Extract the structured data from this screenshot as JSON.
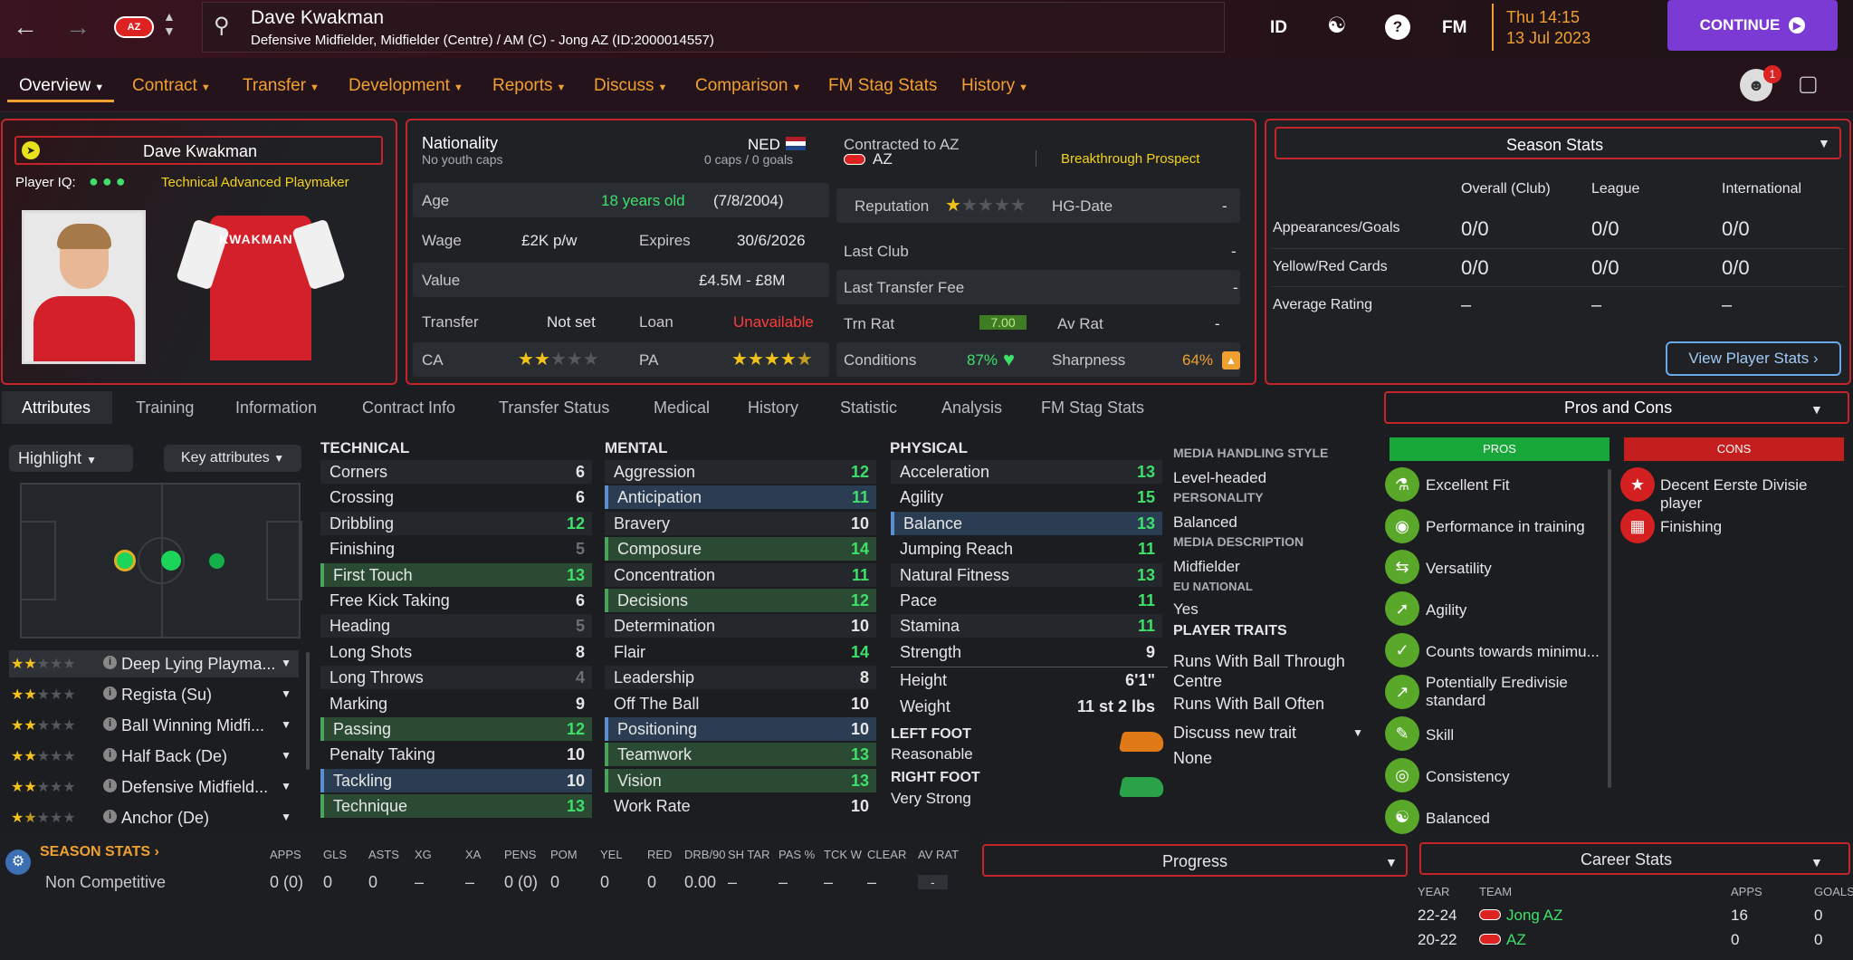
{
  "header": {
    "name": "Dave Kwakman",
    "subtitle": "Defensive Midfielder, Midfielder (Centre) / AM (C) - Jong AZ (ID:2000014557)",
    "id_label": "ID",
    "fm_label": "FM",
    "day_time": "Thu 14:15",
    "date": "13 Jul 2023",
    "continue_label": "CONTINUE",
    "notif_count": "1"
  },
  "nav": {
    "tabs": [
      "Overview",
      "Contract",
      "Transfer",
      "Development",
      "Reports",
      "Discuss",
      "Comparison",
      "FM Stag Stats",
      "History"
    ]
  },
  "profile": {
    "name": "Dave Kwakman",
    "iq_label": "Player IQ:",
    "role": "Technical Advanced Playmaker",
    "shirt_name": "KWAKMAN"
  },
  "info": {
    "nationality_label": "Nationality",
    "nationality": "NED",
    "youth_caps": "No youth caps",
    "caps": "0 caps / 0 goals",
    "age_label": "Age",
    "age": "18 years old",
    "dob": "(7/8/2004)",
    "wage_label": "Wage",
    "wage": "£2K p/w",
    "expires_label": "Expires",
    "expires": "30/6/2026",
    "value_label": "Value",
    "value": "£4.5M - £8M",
    "transfer_label": "Transfer",
    "transfer": "Not set",
    "loan_label": "Loan",
    "loan": "Unavailable",
    "ca_label": "CA",
    "pa_label": "PA",
    "ca_stars": 2,
    "pa_stars": 4.5
  },
  "contract": {
    "contracted_label": "Contracted to AZ",
    "club": "AZ",
    "tag": "Breakthrough Prospect",
    "reputation_label": "Reputation",
    "reputation_stars": 1,
    "hg_label": "HG-Date",
    "hg": "-",
    "last_club_label": "Last Club",
    "last_club": "-",
    "last_fee_label": "Last Transfer Fee",
    "last_fee": "-",
    "trn_label": "Trn Rat",
    "trn": "7.00",
    "av_label": "Av Rat",
    "av": "-",
    "cond_label": "Conditions",
    "cond": "87%",
    "sharp_label": "Sharpness",
    "sharp": "64%"
  },
  "season": {
    "title": "Season Stats",
    "cols": [
      "Overall (Club)",
      "League",
      "International"
    ],
    "rows": [
      {
        "label": "Appearances/Goals",
        "vals": [
          "0/0",
          "0/0",
          "0/0"
        ]
      },
      {
        "label": "Yellow/Red Cards",
        "vals": [
          "0/0",
          "0/0",
          "0/0"
        ]
      },
      {
        "label": "Average Rating",
        "vals": [
          "–",
          "–",
          "–"
        ]
      }
    ],
    "button": "View Player Stats"
  },
  "subtabs": [
    "Attributes",
    "Training",
    "Information",
    "Contract Info",
    "Transfer Status",
    "Medical",
    "History",
    "Statistic",
    "Analysis",
    "FM Stag Stats"
  ],
  "controls": {
    "highlight": "Highlight",
    "key_attributes": "Key attributes"
  },
  "roles": [
    {
      "name": "Deep Lying Playma...",
      "stars": 2
    },
    {
      "name": "Regista (Su)",
      "stars": 2
    },
    {
      "name": "Ball Winning Midfi...",
      "stars": 2
    },
    {
      "name": "Half Back (De)",
      "stars": 2
    },
    {
      "name": "Defensive Midfield...",
      "stars": 2
    },
    {
      "name": "Anchor (De)",
      "stars": 1.5
    }
  ],
  "technical": {
    "title": "TECHNICAL",
    "items": [
      {
        "n": "Corners",
        "v": "6"
      },
      {
        "n": "Crossing",
        "v": "6"
      },
      {
        "n": "Dribbling",
        "v": "12"
      },
      {
        "n": "Finishing",
        "v": "5"
      },
      {
        "n": "First Touch",
        "v": "13"
      },
      {
        "n": "Free Kick Taking",
        "v": "6"
      },
      {
        "n": "Heading",
        "v": "5"
      },
      {
        "n": "Long Shots",
        "v": "8"
      },
      {
        "n": "Long Throws",
        "v": "4"
      },
      {
        "n": "Marking",
        "v": "9"
      },
      {
        "n": "Passing",
        "v": "12"
      },
      {
        "n": "Penalty Taking",
        "v": "10"
      },
      {
        "n": "Tackling",
        "v": "10"
      },
      {
        "n": "Technique",
        "v": "13"
      }
    ]
  },
  "mental": {
    "title": "MENTAL",
    "items": [
      {
        "n": "Aggression",
        "v": "12"
      },
      {
        "n": "Anticipation",
        "v": "11"
      },
      {
        "n": "Bravery",
        "v": "10"
      },
      {
        "n": "Composure",
        "v": "14"
      },
      {
        "n": "Concentration",
        "v": "11"
      },
      {
        "n": "Decisions",
        "v": "12"
      },
      {
        "n": "Determination",
        "v": "10"
      },
      {
        "n": "Flair",
        "v": "14"
      },
      {
        "n": "Leadership",
        "v": "8"
      },
      {
        "n": "Off The Ball",
        "v": "10"
      },
      {
        "n": "Positioning",
        "v": "10"
      },
      {
        "n": "Teamwork",
        "v": "13"
      },
      {
        "n": "Vision",
        "v": "13"
      },
      {
        "n": "Work Rate",
        "v": "10"
      }
    ]
  },
  "physical": {
    "title": "PHYSICAL",
    "items": [
      {
        "n": "Acceleration",
        "v": "13"
      },
      {
        "n": "Agility",
        "v": "15"
      },
      {
        "n": "Balance",
        "v": "13"
      },
      {
        "n": "Jumping Reach",
        "v": "11"
      },
      {
        "n": "Natural Fitness",
        "v": "13"
      },
      {
        "n": "Pace",
        "v": "11"
      },
      {
        "n": "Stamina",
        "v": "11"
      },
      {
        "n": "Strength",
        "v": "9"
      }
    ],
    "height_label": "Height",
    "height": "6'1\"",
    "weight_label": "Weight",
    "weight": "11 st 2 lbs",
    "left_foot_label": "LEFT FOOT",
    "left_foot": "Reasonable",
    "right_foot_label": "RIGHT FOOT",
    "right_foot": "Very Strong"
  },
  "media": {
    "style_label": "MEDIA HANDLING STYLE",
    "style": "Level-headed",
    "personality_label": "PERSONALITY",
    "personality": "Balanced",
    "desc_label": "MEDIA DESCRIPTION",
    "desc": "Midfielder",
    "eu_label": "EU NATIONAL",
    "eu": "Yes",
    "traits_label": "PLAYER TRAITS",
    "trait1a": "Runs With Ball Through",
    "trait1b": "Centre",
    "trait2": "Runs With Ball Often",
    "discuss": "Discuss new trait",
    "none": "None"
  },
  "proscons": {
    "title": "Pros and Cons",
    "pros_label": "PROS",
    "cons_label": "CONS",
    "pros": [
      "Excellent Fit",
      "Performance in training",
      "Versatility",
      "Agility",
      "Counts towards minimu...",
      "Potentially Eredivisie",
      "standard",
      "Skill",
      "Consistency",
      "Balanced"
    ],
    "cons": [
      "Decent Eerste Divisie player",
      "Finishing"
    ]
  },
  "bottom": {
    "title": "SEASON STATS",
    "heads": [
      "APPS",
      "GLS",
      "ASTS",
      "XG",
      "XA",
      "PENS",
      "POM",
      "YEL",
      "RED",
      "DRB/90",
      "SH TAR",
      "PAS %",
      "TCK W",
      "CLEAR",
      "AV RAT"
    ],
    "row_label": "Non Competitive",
    "vals": [
      "0 (0)",
      "0",
      "0",
      "–",
      "–",
      "0 (0)",
      "0",
      "0",
      "0",
      "0.00",
      "–",
      "–",
      "–",
      "–",
      "-"
    ],
    "progress": "Progress"
  },
  "career": {
    "title": "Career Stats",
    "heads": [
      "YEAR",
      "TEAM",
      "APPS",
      "GOALS"
    ],
    "rows": [
      {
        "year": "22-24",
        "team": "Jong AZ",
        "apps": "16",
        "goals": "0"
      },
      {
        "year": "20-22",
        "team": "AZ",
        "apps": "0",
        "goals": "0"
      }
    ]
  }
}
